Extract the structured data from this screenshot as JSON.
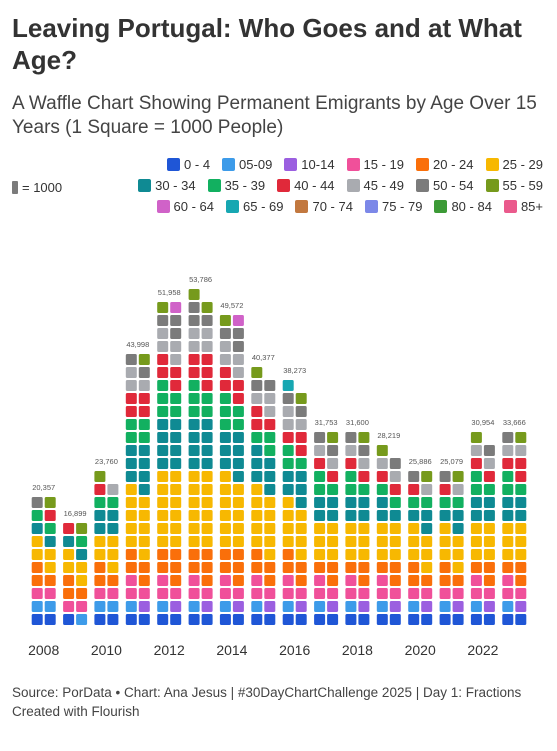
{
  "title": "Leaving Portugal: Who Goes and at What Age?",
  "subtitle": "A Waffle Chart Showing Permanent Emigrants by Age Over 15 Years (1 Square = 1000 People)",
  "unit_legend_label": "= 1000",
  "footer": {
    "source": "Source: PorData • Chart: Ana Jesus | #30DayChartChallenge 2025 | Day 1: Fractions",
    "credit": "Created with Flourish"
  },
  "chart_data": {
    "type": "waffle",
    "unit": 1000,
    "x_tick_labels": [
      "2008",
      "2010",
      "2012",
      "2014",
      "2016",
      "2018",
      "2020",
      "2022"
    ],
    "categories": [
      "2008",
      "2009",
      "2010",
      "2011",
      "2012",
      "2013",
      "2014",
      "2015",
      "2016",
      "2017",
      "2018",
      "2019",
      "2020",
      "2021",
      "2022",
      "2023"
    ],
    "totals": [
      20357,
      16899,
      23760,
      43998,
      51958,
      53786,
      49572,
      40377,
      38273,
      31753,
      31600,
      28219,
      25886,
      25079,
      30954,
      33666
    ],
    "total_labels": [
      "20,357",
      "16,899",
      "23,760",
      "43,998",
      "51,958",
      "53,786",
      "49,572",
      "40,377",
      "38,273",
      "31,753",
      "31,600",
      "28,219",
      "25,886",
      "25,079",
      "30,954",
      "33,666"
    ],
    "series": [
      {
        "name": "0 - 4",
        "color": "#1f56d6",
        "values": [
          2,
          1,
          2,
          2,
          2,
          2,
          2,
          2,
          2,
          2,
          2,
          2,
          2,
          2,
          2,
          2
        ]
      },
      {
        "name": "05-09",
        "color": "#3d9be9",
        "values": [
          2,
          1,
          2,
          1,
          1,
          1,
          1,
          1,
          1,
          1,
          1,
          1,
          1,
          1,
          1,
          1
        ]
      },
      {
        "name": "10-14",
        "color": "#9b5fe0",
        "values": [
          0,
          0,
          0,
          1,
          1,
          1,
          1,
          1,
          1,
          1,
          1,
          1,
          1,
          1,
          1,
          1
        ]
      },
      {
        "name": "15 - 19",
        "color": "#f0509a",
        "values": [
          2,
          2,
          2,
          3,
          3,
          3,
          3,
          3,
          3,
          3,
          3,
          3,
          2,
          2,
          3,
          3
        ]
      },
      {
        "name": "20 - 24",
        "color": "#fa6f0a",
        "values": [
          3,
          3,
          3,
          4,
          5,
          5,
          5,
          4,
          4,
          3,
          3,
          3,
          3,
          3,
          3,
          3
        ]
      },
      {
        "name": "25 - 29",
        "color": "#f7b801",
        "values": [
          4,
          4,
          5,
          10,
          12,
          12,
          11,
          10,
          8,
          6,
          6,
          6,
          6,
          6,
          6,
          6
        ]
      },
      {
        "name": "30 - 34",
        "color": "#0f8a93",
        "values": [
          2,
          2,
          4,
          7,
          8,
          8,
          7,
          6,
          5,
          4,
          4,
          3,
          3,
          3,
          4,
          4
        ]
      },
      {
        "name": "35 - 39",
        "color": "#12b060",
        "values": [
          2,
          1,
          2,
          4,
          5,
          5,
          5,
          3,
          3,
          3,
          3,
          2,
          2,
          2,
          3,
          3
        ]
      },
      {
        "name": "40 - 44",
        "color": "#e0293a",
        "values": [
          1,
          1,
          1,
          4,
          4,
          5,
          4,
          3,
          3,
          2,
          2,
          2,
          1,
          1,
          2,
          3
        ]
      },
      {
        "name": "45 - 49",
        "color": "#a9abb0",
        "values": [
          0,
          0,
          1,
          3,
          4,
          4,
          4,
          3,
          3,
          2,
          2,
          2,
          1,
          1,
          2,
          2
        ]
      },
      {
        "name": "50 - 54",
        "color": "#7b7b7b",
        "values": [
          1,
          0,
          0,
          2,
          3,
          3,
          3,
          2,
          2,
          2,
          2,
          1,
          1,
          1,
          1,
          1
        ]
      },
      {
        "name": "55 - 59",
        "color": "#769a1c",
        "values": [
          1,
          1,
          1,
          1,
          1,
          2,
          1,
          1,
          1,
          1,
          1,
          1,
          1,
          1,
          1,
          1
        ]
      },
      {
        "name": "60 - 64",
        "color": "#d062c8",
        "values": [
          0,
          0,
          0,
          0,
          1,
          0,
          1,
          0,
          0,
          0,
          0,
          0,
          0,
          0,
          0,
          0
        ]
      },
      {
        "name": "65 - 69",
        "color": "#17a7b2",
        "values": [
          0,
          0,
          0,
          0,
          0,
          0,
          0,
          0,
          1,
          0,
          0,
          0,
          0,
          0,
          0,
          0
        ]
      },
      {
        "name": "70 - 74",
        "color": "#c2783f",
        "values": [
          0,
          0,
          0,
          0,
          0,
          0,
          0,
          0,
          0,
          0,
          0,
          0,
          0,
          0,
          0,
          0
        ]
      },
      {
        "name": "75 - 79",
        "color": "#7c88e8",
        "values": [
          0,
          0,
          0,
          0,
          0,
          0,
          0,
          0,
          0,
          0,
          0,
          0,
          0,
          0,
          0,
          0
        ]
      },
      {
        "name": "80 - 84",
        "color": "#3c9a36",
        "values": [
          0,
          0,
          0,
          0,
          0,
          0,
          0,
          0,
          0,
          0,
          0,
          0,
          0,
          0,
          0,
          0
        ]
      },
      {
        "name": "85+",
        "color": "#ea5a8c",
        "values": [
          0,
          0,
          0,
          0,
          0,
          0,
          0,
          0,
          0,
          0,
          0,
          0,
          0,
          0,
          0,
          0
        ]
      }
    ],
    "unit_color": "#7b7b7b"
  }
}
